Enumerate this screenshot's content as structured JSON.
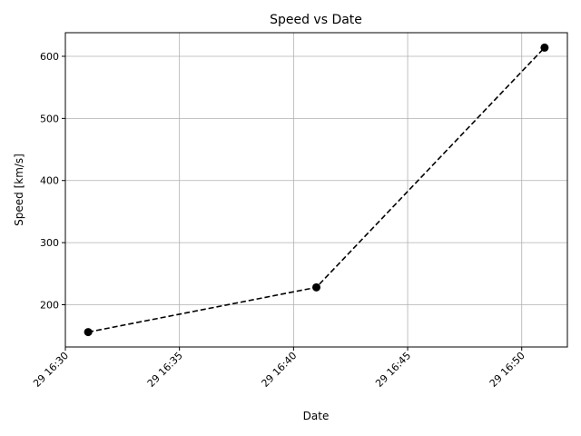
{
  "chart_data": {
    "type": "line",
    "title": "Speed vs Date",
    "xlabel": "Date",
    "ylabel": "Speed [km/s]",
    "x_axis_type": "datetime",
    "x": [
      "2000-01-29 16:31",
      "2000-01-29 16:41",
      "2000-01-29 16:51"
    ],
    "x_tick_labels": [
      "29 16:30",
      "29 16:35",
      "29 16:40",
      "29 16:45",
      "29 16:50"
    ],
    "x_tick_values": [
      "2000-01-29 16:30",
      "2000-01-29 16:35",
      "2000-01-29 16:40",
      "2000-01-29 16:45",
      "2000-01-29 16:50"
    ],
    "xlim": [
      "2000-01-29 16:30",
      "2000-01-29 16:52"
    ],
    "ylim": [
      132,
      638
    ],
    "y_ticks": [
      200,
      300,
      400,
      500,
      600
    ],
    "series": [
      {
        "values": [
          156,
          228,
          614
        ],
        "color": "#000000"
      }
    ],
    "grid": true,
    "line_style": "dashed",
    "marker": "circle"
  }
}
